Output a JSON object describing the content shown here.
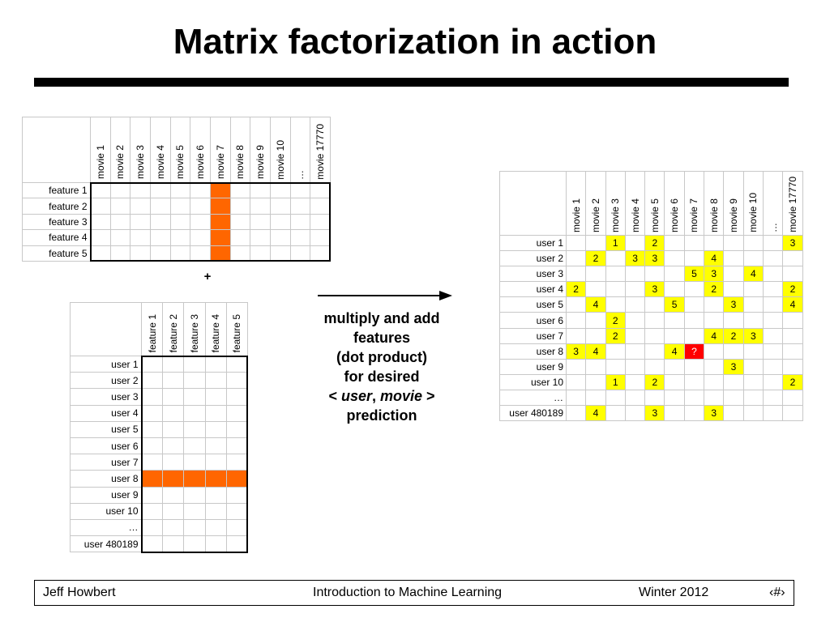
{
  "slide": {
    "title": "Matrix factorization in action",
    "plus": "+",
    "caption": {
      "line1": "multiply and add",
      "line2": "features",
      "line3": "(dot product)",
      "line4": "for desired",
      "line5_open": "< ",
      "line5_user": "user",
      "line5_sep": ", ",
      "line5_movie": "movie",
      "line5_close": " >",
      "line6": "prediction"
    },
    "footer": {
      "author": "Jeff Howbert",
      "course": "Introduction to Machine Learning",
      "term": "Winter 2012",
      "page": "‹#›"
    }
  },
  "movie_feature_matrix": {
    "columns": [
      "movie 1",
      "movie 2",
      "movie 3",
      "movie 4",
      "movie 5",
      "movie 6",
      "movie 7",
      "movie 8",
      "movie 9",
      "movie 10",
      "…",
      "movie 17770"
    ],
    "rows": [
      "feature 1",
      "feature 2",
      "feature 3",
      "feature 4",
      "feature 5"
    ],
    "highlight_column": "movie 7",
    "highlight_color": "#ff6600"
  },
  "user_feature_matrix": {
    "columns": [
      "feature 1",
      "feature 2",
      "feature 3",
      "feature 4",
      "feature 5"
    ],
    "rows": [
      "user 1",
      "user 2",
      "user 3",
      "user 4",
      "user 5",
      "user 6",
      "user 7",
      "user 8",
      "user 9",
      "user 10",
      "…",
      "user 480189"
    ],
    "highlight_row": "user 8",
    "highlight_color": "#ff6600"
  },
  "ratings_matrix": {
    "columns": [
      "movie 1",
      "movie 2",
      "movie 3",
      "movie 4",
      "movie 5",
      "movie 6",
      "movie 7",
      "movie 8",
      "movie 9",
      "movie 10",
      "…",
      "movie 17770"
    ],
    "rows": [
      {
        "label": "user 1",
        "cells": [
          "",
          "",
          "1",
          "",
          "2",
          "",
          "",
          "",
          "",
          "",
          "",
          "3"
        ]
      },
      {
        "label": "user 2",
        "cells": [
          "",
          "2",
          "",
          "3",
          "3",
          "",
          "",
          "4",
          "",
          "",
          "",
          ""
        ]
      },
      {
        "label": "user 3",
        "cells": [
          "",
          "",
          "",
          "",
          "",
          "",
          "5",
          "3",
          "",
          "4",
          "",
          ""
        ]
      },
      {
        "label": "user 4",
        "cells": [
          "2",
          "",
          "",
          "",
          "3",
          "",
          "",
          "2",
          "",
          "",
          "",
          "2"
        ]
      },
      {
        "label": "user 5",
        "cells": [
          "",
          "4",
          "",
          "",
          "",
          "5",
          "",
          "",
          "3",
          "",
          "",
          "4"
        ]
      },
      {
        "label": "user 6",
        "cells": [
          "",
          "",
          "2",
          "",
          "",
          "",
          "",
          "",
          "",
          "",
          "",
          ""
        ]
      },
      {
        "label": "user 7",
        "cells": [
          "",
          "",
          "2",
          "",
          "",
          "",
          "",
          "4",
          "2",
          "3",
          "",
          ""
        ]
      },
      {
        "label": "user 8",
        "cells": [
          "3",
          "4",
          "",
          "",
          "",
          "4",
          "?",
          "",
          "",
          "",
          "",
          ""
        ]
      },
      {
        "label": "user 9",
        "cells": [
          "",
          "",
          "",
          "",
          "",
          "",
          "",
          "",
          "3",
          "",
          "",
          ""
        ]
      },
      {
        "label": "user 10",
        "cells": [
          "",
          "",
          "1",
          "",
          "2",
          "",
          "",
          "",
          "",
          "",
          "",
          "2"
        ]
      },
      {
        "label": "…",
        "cells": [
          "",
          "",
          "",
          "",
          "",
          "",
          "",
          "",
          "",
          "",
          "",
          ""
        ]
      },
      {
        "label": "user 480189",
        "cells": [
          "",
          "4",
          "",
          "",
          "3",
          "",
          "",
          "3",
          "",
          "",
          "",
          ""
        ]
      }
    ],
    "query_cell": {
      "row": "user 8",
      "column": "movie 7",
      "value": "?"
    },
    "rating_color": "#ffff00",
    "query_color": "#ff0000"
  }
}
